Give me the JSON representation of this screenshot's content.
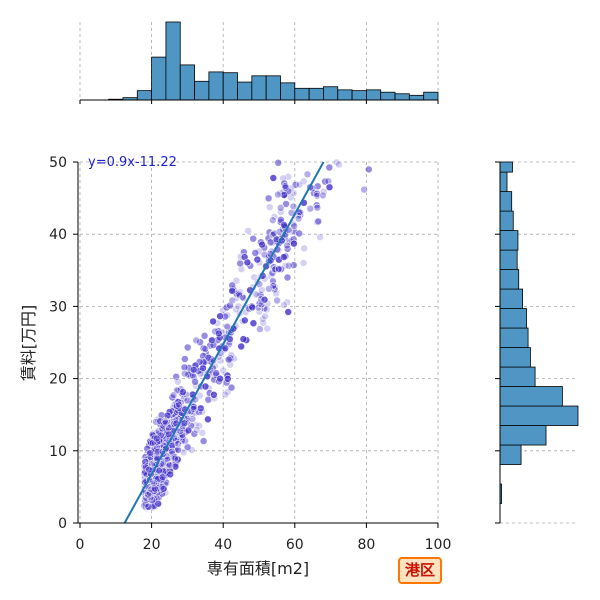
{
  "chart_data": {
    "type": "scatter",
    "xlabel": "専有面積[m2]",
    "ylabel": "賃料[万円]",
    "xlim": [
      0,
      100
    ],
    "ylim": [
      0,
      50
    ],
    "xticks": [
      0,
      20,
      40,
      60,
      80,
      100
    ],
    "yticks": [
      0,
      10,
      20,
      30,
      40,
      50
    ],
    "grid": true,
    "annotation": "y=0.9x-11.22",
    "regression": {
      "slope": 0.9,
      "intercept": -11.22
    },
    "scatter_note": "dense point cloud along the trend; point count not readable",
    "marginal_x_hist": {
      "bin_edges": [
        0,
        4,
        8,
        12,
        16,
        20,
        24,
        28,
        32,
        36,
        40,
        44,
        48,
        52,
        56,
        60,
        64,
        68,
        72,
        76,
        80,
        84,
        88,
        92,
        96,
        100
      ],
      "counts": [
        0,
        0,
        1,
        3,
        12,
        55,
        100,
        45,
        24,
        36,
        35,
        23,
        31,
        31,
        22,
        15,
        15,
        17,
        13,
        12,
        13,
        10,
        8,
        6,
        10
      ]
    },
    "marginal_y_hist": {
      "bin_edges": [
        0,
        2.7,
        5.4,
        8.1,
        10.8,
        13.5,
        16.2,
        18.9,
        21.6,
        24.3,
        27,
        29.7,
        32.4,
        35.1,
        37.8,
        40.5,
        43.2,
        45.9,
        48.6,
        50
      ],
      "counts": [
        0,
        2,
        0,
        27,
        59,
        100,
        80,
        45,
        39,
        36,
        34,
        29,
        24,
        22,
        23,
        17,
        15,
        9,
        16
      ]
    }
  },
  "area_badge": "港区",
  "colors": {
    "points": "#3f2fc8",
    "regression_line": "#1f77b4",
    "histogram_fill": "#4f96c4",
    "annotation": "#2222cc",
    "badge_border": "#ff7700",
    "badge_fill": "#fde3c2",
    "badge_text": "#cc1100"
  }
}
